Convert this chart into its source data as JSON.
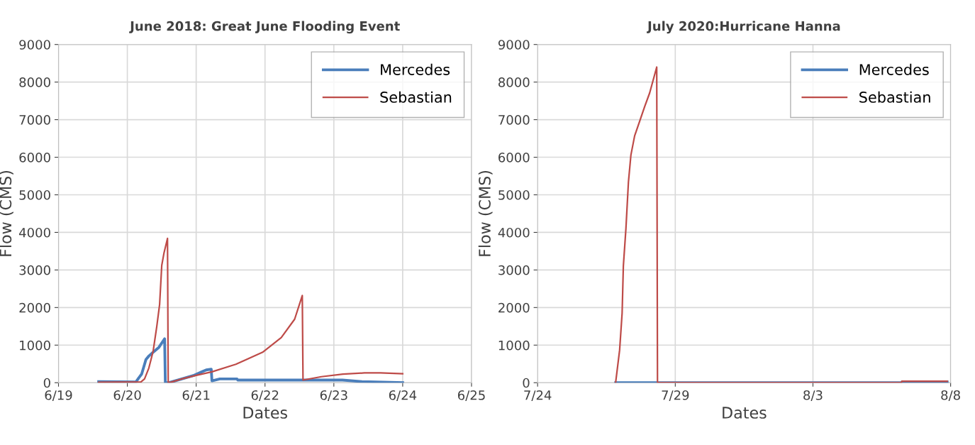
{
  "chart_data": [
    {
      "type": "line",
      "title": "June 2018: Great June Flooding Event",
      "xlabel": "Dates",
      "ylabel": "Flow (CMS)",
      "xlim": [
        "2018-06-19",
        "2018-06-25"
      ],
      "ylim": [
        0,
        9000
      ],
      "xticks": [
        {
          "value": "2018-06-19",
          "label": "6/19"
        },
        {
          "value": "2018-06-20",
          "label": "6/20"
        },
        {
          "value": "2018-06-21",
          "label": "6/21"
        },
        {
          "value": "2018-06-22",
          "label": "6/22"
        },
        {
          "value": "2018-06-23",
          "label": "6/23"
        },
        {
          "value": "2018-06-24",
          "label": "6/24"
        },
        {
          "value": "2018-06-25",
          "label": "6/25"
        }
      ],
      "yticks": [
        0,
        1000,
        2000,
        3000,
        4000,
        5000,
        6000,
        7000,
        8000,
        9000
      ],
      "grid": true,
      "legend": "top right",
      "marker": "none",
      "line_style": "solid",
      "series": [
        {
          "name": "Mercedes",
          "color": "#4a7ebb",
          "x": [
            "2018-06-19T14:00",
            "2018-06-20T03:00",
            "2018-06-20T04:00",
            "2018-06-20T05:00",
            "2018-06-20T06:30",
            "2018-06-20T07:30",
            "2018-06-20T09:00",
            "2018-06-20T11:00",
            "2018-06-20T13:00",
            "2018-06-20T13:15",
            "2018-06-20T14:30",
            "2018-06-20T19:00",
            "2018-06-20T23:00",
            "2018-06-21T02:00",
            "2018-06-21T03:30",
            "2018-06-21T05:15",
            "2018-06-21T05:30",
            "2018-06-21T08:15",
            "2018-06-21T14:15",
            "2018-06-21T14:30",
            "2018-06-22T10:30",
            "2018-06-23T03:00",
            "2018-06-23T09:45",
            "2018-06-23T14:30",
            "2018-06-24T00:00"
          ],
          "values": [
            30,
            20,
            130,
            230,
            620,
            710,
            810,
            940,
            1170,
            0,
            0,
            100,
            190,
            290,
            340,
            360,
            50,
            100,
            100,
            70,
            70,
            70,
            30,
            20,
            0
          ]
        },
        {
          "name": "Sebastian",
          "color": "#be4b48",
          "x": [
            "2018-06-19T14:00",
            "2018-06-20T04:45",
            "2018-06-20T06:00",
            "2018-06-20T07:30",
            "2018-06-20T09:00",
            "2018-06-20T10:15",
            "2018-06-20T11:15",
            "2018-06-20T12:00",
            "2018-06-20T12:45",
            "2018-06-20T14:00",
            "2018-06-20T14:15",
            "2018-06-20T15:30",
            "2018-06-20T19:00",
            "2018-06-20T23:45",
            "2018-06-21T05:30",
            "2018-06-21T13:50",
            "2018-06-21T23:10",
            "2018-06-22T05:40",
            "2018-06-22T10:20",
            "2018-06-22T13:00",
            "2018-06-22T13:15",
            "2018-06-22T19:40",
            "2018-06-23T03:10",
            "2018-06-23T10:40",
            "2018-06-23T16:15",
            "2018-06-24T00:00"
          ],
          "values": [
            10,
            20,
            100,
            390,
            840,
            1490,
            2080,
            3120,
            3440,
            3840,
            0,
            20,
            100,
            190,
            290,
            490,
            810,
            1200,
            1690,
            2320,
            70,
            160,
            230,
            260,
            260,
            240
          ]
        }
      ]
    },
    {
      "type": "line",
      "title": "July 2020:Hurricane Hanna",
      "xlabel": "Dates",
      "ylabel": "Flow (CMS)",
      "xlim": [
        "2020-07-24",
        "2020-08-08"
      ],
      "ylim": [
        0,
        9000
      ],
      "xticks": [
        {
          "value": "2020-07-24",
          "label": "7/24"
        },
        {
          "value": "2020-07-29",
          "label": "7/29"
        },
        {
          "value": "2020-08-03",
          "label": "8/3"
        },
        {
          "value": "2020-08-08",
          "label": "8/8"
        }
      ],
      "yticks": [
        0,
        1000,
        2000,
        3000,
        4000,
        5000,
        6000,
        7000,
        8000,
        9000
      ],
      "grid": true,
      "legend": "top right",
      "marker": "none",
      "line_style": "solid",
      "series": [
        {
          "name": "Mercedes",
          "color": "#4a7ebb",
          "x": [
            "2020-07-26T20:00",
            "2020-08-06T05:00",
            "2020-08-06T05:30",
            "2020-08-07T21:00"
          ],
          "values": [
            0,
            0,
            20,
            20
          ]
        },
        {
          "name": "Sebastian",
          "color": "#be4b48",
          "x": [
            "2020-07-26T20:00",
            "2020-07-26T23:30",
            "2020-07-27T01:40",
            "2020-07-27T02:45",
            "2020-07-27T05:00",
            "2020-07-27T07:10",
            "2020-07-27T09:20",
            "2020-07-27T12:35",
            "2020-07-27T17:00",
            "2020-07-27T21:20",
            "2020-07-28T01:40",
            "2020-07-28T07:50",
            "2020-07-28T08:30",
            "2020-08-06T05:00",
            "2020-08-06T05:30",
            "2020-08-07T21:00"
          ],
          "values": [
            0,
            870,
            1850,
            3110,
            4110,
            5340,
            6060,
            6570,
            6960,
            7350,
            7710,
            8400,
            0,
            0,
            40,
            40
          ]
        }
      ]
    }
  ]
}
